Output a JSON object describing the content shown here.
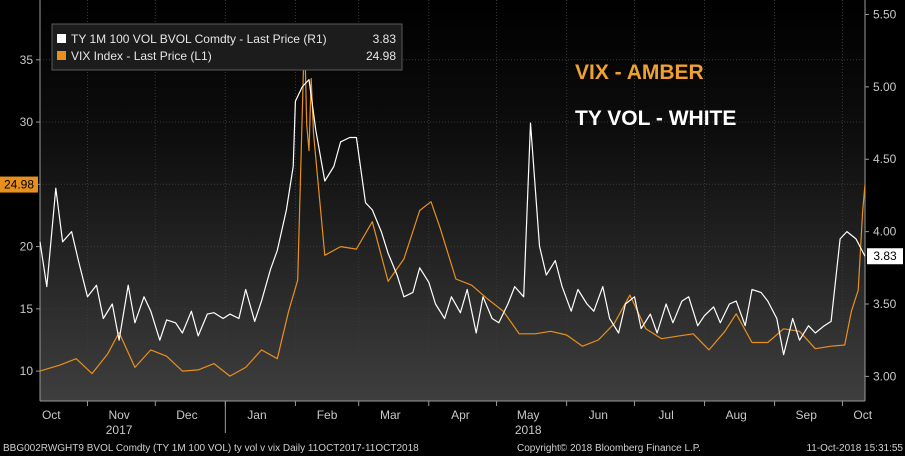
{
  "chart_data": {
    "type": "line",
    "colors": {
      "vix": "#e8901e",
      "ty_vol": "#ffffff",
      "grid": "#3a3a3a"
    },
    "legend": [
      {
        "key": "ty",
        "label": "TY 1M 100 VOL BVOL Comdty - Last Price (R1)",
        "value": "3.83",
        "swatch": "#ffffff"
      },
      {
        "key": "vix",
        "label": "VIX Index - Last Price (L1)",
        "value": "24.98",
        "swatch": "#e8901e"
      }
    ],
    "annotations": [
      {
        "text": "VIX - AMBER",
        "color": "#f0a030"
      },
      {
        "text": "TY VOL - WHITE",
        "color": "#ffffff"
      }
    ],
    "left_axis": {
      "ticks": [
        "10",
        "15",
        "20",
        "25",
        "30",
        "35"
      ],
      "values": [
        10,
        15,
        20,
        25,
        30,
        35
      ],
      "ylim": [
        7.6,
        39.8
      ],
      "last_label": "24.98",
      "last_value": 24.98
    },
    "right_axis": {
      "ticks": [
        "3.00",
        "3.50",
        "4.00",
        "4.50",
        "5.00",
        "5.50"
      ],
      "values": [
        3.0,
        3.5,
        4.0,
        4.5,
        5.0,
        5.5
      ],
      "ylim": [
        2.83,
        5.6
      ],
      "last_label": "3.83",
      "last_value": 3.83
    },
    "x_axis": {
      "months": [
        "Oct",
        "Nov",
        "Dec",
        "Jan",
        "Feb",
        "Mar",
        "Apr",
        "May",
        "Jun",
        "Jul",
        "Aug",
        "Sep",
        "Oct"
      ],
      "month_dates": [
        "2017-10-16",
        "2017-11-15",
        "2017-12-15",
        "2018-01-15",
        "2018-02-15",
        "2018-03-15",
        "2018-04-15",
        "2018-05-15",
        "2018-06-15",
        "2018-07-15",
        "2018-08-15",
        "2018-09-15",
        "2018-10-10"
      ],
      "month_boundaries": [
        "2017-11-01",
        "2017-12-01",
        "2018-01-01",
        "2018-02-01",
        "2018-03-01",
        "2018-04-01",
        "2018-05-01",
        "2018-06-01",
        "2018-07-01",
        "2018-08-01",
        "2018-09-01",
        "2018-10-01"
      ],
      "years": [
        {
          "label": "2017",
          "date": "2017-11-15"
        },
        {
          "label": "2018",
          "date": "2018-05-15"
        }
      ],
      "range": [
        "2017-10-11",
        "2018-10-11"
      ]
    },
    "series": [
      {
        "name": "VIX Index - Last Price (L1)",
        "axis": "left",
        "color": "#e8901e",
        "x": [
          "2017-10-11",
          "2017-10-20",
          "2017-10-27",
          "2017-11-03",
          "2017-11-10",
          "2017-11-15",
          "2017-11-22",
          "2017-11-29",
          "2017-12-06",
          "2017-12-13",
          "2017-12-20",
          "2017-12-27",
          "2018-01-03",
          "2018-01-10",
          "2018-01-17",
          "2018-01-24",
          "2018-01-29",
          "2018-02-02",
          "2018-02-05",
          "2018-02-06",
          "2018-02-07",
          "2018-02-08",
          "2018-02-09",
          "2018-02-14",
          "2018-02-21",
          "2018-02-28",
          "2018-03-07",
          "2018-03-14",
          "2018-03-21",
          "2018-03-28",
          "2018-04-02",
          "2018-04-06",
          "2018-04-13",
          "2018-04-20",
          "2018-04-27",
          "2018-05-04",
          "2018-05-11",
          "2018-05-18",
          "2018-05-25",
          "2018-06-01",
          "2018-06-08",
          "2018-06-15",
          "2018-06-22",
          "2018-06-29",
          "2018-07-06",
          "2018-07-13",
          "2018-07-20",
          "2018-07-27",
          "2018-08-03",
          "2018-08-10",
          "2018-08-15",
          "2018-08-22",
          "2018-08-29",
          "2018-09-05",
          "2018-09-12",
          "2018-09-19",
          "2018-09-26",
          "2018-10-02",
          "2018-10-05",
          "2018-10-08",
          "2018-10-10",
          "2018-10-11"
        ],
        "y": [
          10.0,
          10.5,
          11.0,
          9.8,
          11.4,
          13.1,
          10.3,
          11.7,
          11.2,
          10.0,
          10.1,
          10.6,
          9.6,
          10.3,
          11.7,
          11.0,
          14.8,
          17.3,
          37.3,
          29.8,
          27.7,
          33.5,
          29.1,
          19.3,
          20.0,
          19.8,
          22.0,
          17.2,
          19.0,
          22.9,
          23.6,
          21.5,
          17.4,
          16.9,
          15.8,
          14.8,
          13.0,
          13.0,
          13.2,
          12.9,
          12.0,
          12.5,
          13.8,
          16.1,
          13.4,
          12.6,
          12.8,
          13.0,
          11.7,
          13.2,
          14.6,
          12.3,
          12.3,
          13.4,
          13.2,
          11.8,
          12.0,
          12.1,
          14.8,
          16.5,
          22.9,
          24.98
        ]
      },
      {
        "name": "TY 1M 100 VOL BVOL Comdty - Last Price (R1)",
        "axis": "right",
        "color": "#ffffff",
        "x": [
          "2017-10-11",
          "2017-10-14",
          "2017-10-18",
          "2017-10-21",
          "2017-10-25",
          "2017-10-28",
          "2017-11-01",
          "2017-11-05",
          "2017-11-08",
          "2017-11-12",
          "2017-11-15",
          "2017-11-19",
          "2017-11-22",
          "2017-11-26",
          "2017-11-29",
          "2017-12-03",
          "2017-12-06",
          "2017-12-10",
          "2017-12-13",
          "2017-12-17",
          "2017-12-20",
          "2017-12-24",
          "2017-12-27",
          "2017-12-31",
          "2018-01-03",
          "2018-01-07",
          "2018-01-10",
          "2018-01-14",
          "2018-01-17",
          "2018-01-21",
          "2018-01-24",
          "2018-01-28",
          "2018-01-31",
          "2018-02-01",
          "2018-02-04",
          "2018-02-07",
          "2018-02-10",
          "2018-02-14",
          "2018-02-18",
          "2018-02-21",
          "2018-02-25",
          "2018-02-28",
          "2018-03-04",
          "2018-03-07",
          "2018-03-11",
          "2018-03-14",
          "2018-03-18",
          "2018-03-21",
          "2018-03-25",
          "2018-03-28",
          "2018-04-01",
          "2018-04-04",
          "2018-04-08",
          "2018-04-11",
          "2018-04-15",
          "2018-04-18",
          "2018-04-22",
          "2018-04-25",
          "2018-04-29",
          "2018-05-02",
          "2018-05-06",
          "2018-05-09",
          "2018-05-13",
          "2018-05-16",
          "2018-05-20",
          "2018-05-23",
          "2018-05-27",
          "2018-05-30",
          "2018-06-03",
          "2018-06-06",
          "2018-06-10",
          "2018-06-13",
          "2018-06-17",
          "2018-06-20",
          "2018-06-24",
          "2018-06-27",
          "2018-07-01",
          "2018-07-04",
          "2018-07-08",
          "2018-07-11",
          "2018-07-15",
          "2018-07-18",
          "2018-07-22",
          "2018-07-25",
          "2018-07-29",
          "2018-08-01",
          "2018-08-05",
          "2018-08-08",
          "2018-08-12",
          "2018-08-15",
          "2018-08-19",
          "2018-08-22",
          "2018-08-26",
          "2018-08-29",
          "2018-09-02",
          "2018-09-05",
          "2018-09-09",
          "2018-09-12",
          "2018-09-16",
          "2018-09-19",
          "2018-09-23",
          "2018-09-26",
          "2018-09-30",
          "2018-10-03",
          "2018-10-07",
          "2018-10-11"
        ],
        "y": [
          3.93,
          3.62,
          4.3,
          3.93,
          4.0,
          3.8,
          3.55,
          3.63,
          3.4,
          3.5,
          3.25,
          3.63,
          3.37,
          3.55,
          3.45,
          3.25,
          3.39,
          3.37,
          3.3,
          3.45,
          3.28,
          3.43,
          3.44,
          3.4,
          3.43,
          3.4,
          3.6,
          3.38,
          3.52,
          3.74,
          3.87,
          4.15,
          4.45,
          4.9,
          5.0,
          5.05,
          4.7,
          4.35,
          4.45,
          4.62,
          4.65,
          4.65,
          4.2,
          4.15,
          4.0,
          3.85,
          3.7,
          3.55,
          3.58,
          3.75,
          3.65,
          3.5,
          3.4,
          3.55,
          3.44,
          3.6,
          3.3,
          3.55,
          3.4,
          3.37,
          3.5,
          3.62,
          3.55,
          4.75,
          3.9,
          3.7,
          3.8,
          3.62,
          3.45,
          3.6,
          3.5,
          3.45,
          3.62,
          3.4,
          3.3,
          3.5,
          3.55,
          3.33,
          3.43,
          3.3,
          3.5,
          3.37,
          3.52,
          3.55,
          3.35,
          3.42,
          3.48,
          3.37,
          3.5,
          3.52,
          3.35,
          3.6,
          3.58,
          3.52,
          3.4,
          3.15,
          3.4,
          3.25,
          3.35,
          3.3,
          3.35,
          3.38,
          3.95,
          4.0,
          3.95,
          3.83
        ]
      }
    ]
  },
  "footer": {
    "left": "BBG002RWGHT9 BVOL Comdty (TY 1M 100 VOL) ty vol v vix  Daily 11OCT2017-11OCT2018",
    "center": "Copyright© 2018 Bloomberg Finance L.P.",
    "right": "11-Oct-2018 15:31:55"
  }
}
